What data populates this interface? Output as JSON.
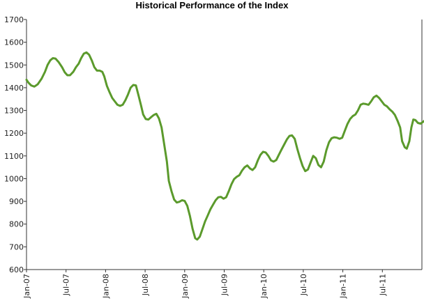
{
  "chart_data": {
    "type": "line",
    "title": "Historical Performance of the Index",
    "xlabel": "",
    "ylabel": "",
    "ylim": [
      600,
      1700
    ],
    "yticks": [
      600,
      700,
      800,
      900,
      1000,
      1100,
      1200,
      1300,
      1400,
      1500,
      1600,
      1700
    ],
    "xlim": [
      0,
      60
    ],
    "xticks": [
      {
        "label": "Jan-07",
        "x": 0
      },
      {
        "label": "Jul-07",
        "x": 6
      },
      {
        "label": "Jan-08",
        "x": 12
      },
      {
        "label": "Jul-08",
        "x": 18
      },
      {
        "label": "Jan-09",
        "x": 24
      },
      {
        "label": "Jul-09",
        "x": 30
      },
      {
        "label": "Jan-10",
        "x": 36
      },
      {
        "label": "Jul-10",
        "x": 42
      },
      {
        "label": "Jan-11",
        "x": 48
      },
      {
        "label": "Jul-11",
        "x": 54
      }
    ],
    "grid": false,
    "color": "#5b9a2c",
    "series": [
      {
        "name": "",
        "points": [
          [
            0.0,
            1435
          ],
          [
            0.3,
            1422
          ],
          [
            0.7,
            1410
          ],
          [
            1.2,
            1405
          ],
          [
            1.7,
            1415
          ],
          [
            2.3,
            1440
          ],
          [
            2.8,
            1470
          ],
          [
            3.2,
            1500
          ],
          [
            3.6,
            1520
          ],
          [
            4.0,
            1530
          ],
          [
            4.4,
            1528
          ],
          [
            4.9,
            1512
          ],
          [
            5.4,
            1490
          ],
          [
            5.8,
            1468
          ],
          [
            6.2,
            1455
          ],
          [
            6.6,
            1455
          ],
          [
            7.1,
            1470
          ],
          [
            7.5,
            1490
          ],
          [
            7.9,
            1505
          ],
          [
            8.3,
            1530
          ],
          [
            8.7,
            1550
          ],
          [
            9.1,
            1555
          ],
          [
            9.5,
            1545
          ],
          [
            9.9,
            1520
          ],
          [
            10.3,
            1490
          ],
          [
            10.7,
            1475
          ],
          [
            11.1,
            1475
          ],
          [
            11.5,
            1470
          ],
          [
            11.8,
            1450
          ],
          [
            12.2,
            1408
          ],
          [
            12.6,
            1380
          ],
          [
            13.0,
            1355
          ],
          [
            13.4,
            1340
          ],
          [
            13.8,
            1325
          ],
          [
            14.2,
            1320
          ],
          [
            14.6,
            1325
          ],
          [
            15.0,
            1345
          ],
          [
            15.4,
            1370
          ],
          [
            15.8,
            1400
          ],
          [
            16.2,
            1412
          ],
          [
            16.6,
            1410
          ],
          [
            17.0,
            1365
          ],
          [
            17.4,
            1320
          ],
          [
            17.7,
            1282
          ],
          [
            18.1,
            1262
          ],
          [
            18.5,
            1260
          ],
          [
            18.9,
            1270
          ],
          [
            19.3,
            1280
          ],
          [
            19.7,
            1285
          ],
          [
            20.1,
            1265
          ],
          [
            20.5,
            1225
          ],
          [
            20.9,
            1150
          ],
          [
            21.3,
            1075
          ],
          [
            21.6,
            990
          ],
          [
            22.0,
            945
          ],
          [
            22.4,
            908
          ],
          [
            22.8,
            895
          ],
          [
            23.2,
            898
          ],
          [
            23.6,
            905
          ],
          [
            24.0,
            902
          ],
          [
            24.4,
            880
          ],
          [
            24.8,
            835
          ],
          [
            25.2,
            780
          ],
          [
            25.6,
            738
          ],
          [
            25.9,
            732
          ],
          [
            26.3,
            745
          ],
          [
            26.7,
            778
          ],
          [
            27.1,
            812
          ],
          [
            27.5,
            838
          ],
          [
            27.9,
            865
          ],
          [
            28.3,
            885
          ],
          [
            28.7,
            905
          ],
          [
            29.1,
            918
          ],
          [
            29.5,
            920
          ],
          [
            29.9,
            912
          ],
          [
            30.3,
            918
          ],
          [
            30.7,
            945
          ],
          [
            31.1,
            975
          ],
          [
            31.5,
            998
          ],
          [
            31.9,
            1008
          ],
          [
            32.3,
            1015
          ],
          [
            32.7,
            1035
          ],
          [
            33.1,
            1050
          ],
          [
            33.5,
            1058
          ],
          [
            33.9,
            1045
          ],
          [
            34.3,
            1038
          ],
          [
            34.7,
            1050
          ],
          [
            35.1,
            1080
          ],
          [
            35.5,
            1105
          ],
          [
            35.9,
            1118
          ],
          [
            36.3,
            1115
          ],
          [
            36.7,
            1100
          ],
          [
            37.1,
            1080
          ],
          [
            37.5,
            1075
          ],
          [
            37.9,
            1082
          ],
          [
            38.3,
            1105
          ],
          [
            38.7,
            1128
          ],
          [
            39.1,
            1150
          ],
          [
            39.5,
            1172
          ],
          [
            39.9,
            1188
          ],
          [
            40.3,
            1190
          ],
          [
            40.7,
            1175
          ],
          [
            41.1,
            1130
          ],
          [
            41.5,
            1090
          ],
          [
            41.9,
            1055
          ],
          [
            42.3,
            1033
          ],
          [
            42.7,
            1040
          ],
          [
            43.1,
            1070
          ],
          [
            43.5,
            1100
          ],
          [
            43.9,
            1090
          ],
          [
            44.3,
            1060
          ],
          [
            44.7,
            1050
          ],
          [
            45.1,
            1075
          ],
          [
            45.5,
            1125
          ],
          [
            45.9,
            1160
          ],
          [
            46.3,
            1178
          ],
          [
            46.7,
            1182
          ],
          [
            47.1,
            1180
          ],
          [
            47.5,
            1175
          ],
          [
            47.9,
            1180
          ],
          [
            48.3,
            1210
          ],
          [
            48.7,
            1240
          ],
          [
            49.1,
            1262
          ],
          [
            49.5,
            1275
          ],
          [
            49.9,
            1282
          ],
          [
            50.3,
            1300
          ],
          [
            50.7,
            1325
          ],
          [
            51.1,
            1330
          ],
          [
            51.5,
            1328
          ],
          [
            51.9,
            1325
          ],
          [
            52.3,
            1340
          ],
          [
            52.7,
            1358
          ],
          [
            53.1,
            1365
          ],
          [
            53.5,
            1355
          ],
          [
            53.9,
            1340
          ],
          [
            54.3,
            1325
          ],
          [
            54.7,
            1318
          ],
          [
            55.1,
            1305
          ],
          [
            55.5,
            1295
          ],
          [
            55.9,
            1280
          ],
          [
            56.3,
            1255
          ],
          [
            56.7,
            1225
          ],
          [
            57.0,
            1165
          ],
          [
            57.4,
            1138
          ],
          [
            57.7,
            1132
          ],
          [
            58.1,
            1165
          ],
          [
            58.4,
            1225
          ],
          [
            58.7,
            1260
          ],
          [
            59.0,
            1258
          ],
          [
            59.4,
            1245
          ],
          [
            59.8,
            1242
          ],
          [
            60.1,
            1248
          ],
          [
            60.4,
            1255
          ]
        ]
      }
    ]
  }
}
